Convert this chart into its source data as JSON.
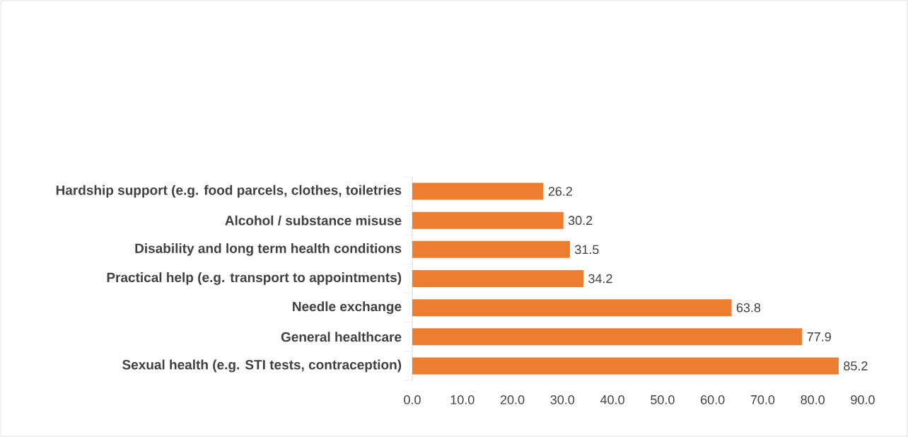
{
  "chart_data": {
    "type": "bar",
    "orientation": "horizontal",
    "categories": [
      "Hardship support (e.g. food parcels, clothes, toiletries",
      "Alcohol / substance misuse",
      "Disability and long term health conditions",
      "Practical help (e.g. transport to appointments)",
      "Needle exchange",
      "General healthcare",
      "Sexual health (e.g. STI tests, contraception)"
    ],
    "values": [
      26.2,
      30.2,
      31.5,
      34.2,
      63.8,
      77.9,
      85.2
    ],
    "color": "#ed7d31",
    "data_labels": true,
    "xlim": [
      0,
      90
    ],
    "xticks": [
      {
        "value": 0,
        "label": "0.0"
      },
      {
        "value": 10,
        "label": "10.0"
      },
      {
        "value": 20,
        "label": "20.0"
      },
      {
        "value": 30,
        "label": "30.0"
      },
      {
        "value": 40,
        "label": "40.0"
      },
      {
        "value": 50,
        "label": "50.0"
      },
      {
        "value": 60,
        "label": "60.0"
      },
      {
        "value": 70,
        "label": "70.0"
      },
      {
        "value": 80,
        "label": "80.0"
      },
      {
        "value": 90,
        "label": "90.0"
      }
    ]
  }
}
